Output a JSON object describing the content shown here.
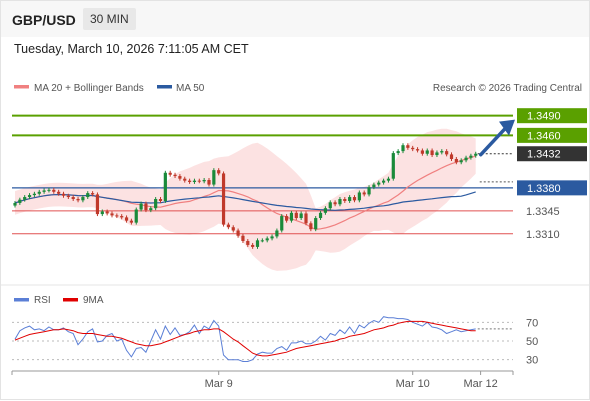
{
  "header": {
    "symbol": "GBP/USD",
    "timeframe": "30 MIN"
  },
  "timestamp": "Tuesday, March 10, 2026 7:11:05 AM CET",
  "legend": {
    "ma20_label": "MA 20 + Bollinger Bands",
    "ma20_color": "#f08080",
    "ma50_label": "MA 50",
    "ma50_color": "#2b5aa0",
    "copyright": "Research © 2026 Trading Central"
  },
  "rsi_legend": {
    "rsi_label": "RSI",
    "rsi_color": "#5b7fd6",
    "ma_label": "9MA",
    "ma_color": "#e00000"
  },
  "colors": {
    "up": "#1a8a3a",
    "down": "#c0392b",
    "band": "#fbd8d8",
    "resistance": "#5aa000",
    "support": "#2b5aa0",
    "sub_support": "#e05050",
    "arrow": "#2b5aa0"
  },
  "chart_data": [
    {
      "type": "candlestick",
      "ylim": [
        1.3235,
        1.352
      ],
      "x_labels": [
        "Mar 9",
        "Mar 10",
        "Mar 12"
      ],
      "current_price": 1.3432,
      "levels": [
        {
          "value": 1.349,
          "label": "1.3490",
          "kind": "resistance"
        },
        {
          "value": 1.346,
          "label": "1.3460",
          "kind": "resistance"
        },
        {
          "value": 1.3432,
          "label": "1.3432",
          "kind": "current"
        },
        {
          "value": 1.338,
          "label": "1.3380",
          "kind": "pivot"
        },
        {
          "value": 1.3345,
          "label": "1.3345",
          "kind": "support"
        },
        {
          "value": 1.331,
          "label": "1.3310",
          "kind": "support"
        }
      ],
      "forecast_target": 1.349,
      "close": [
        1.3357,
        1.3362,
        1.3366,
        1.3369,
        1.3371,
        1.3374,
        1.3376,
        1.3377,
        1.3374,
        1.3371,
        1.3368,
        1.3366,
        1.3363,
        1.3361,
        1.3366,
        1.3372,
        1.337,
        1.334,
        1.3344,
        1.3341,
        1.3338,
        1.3337,
        1.3335,
        1.333,
        1.3327,
        1.3347,
        1.3356,
        1.3346,
        1.3349,
        1.3363,
        1.336,
        1.3403,
        1.34,
        1.3398,
        1.3394,
        1.3391,
        1.3389,
        1.3391,
        1.339,
        1.3392,
        1.3385,
        1.3407,
        1.3402,
        1.3324,
        1.332,
        1.3315,
        1.3307,
        1.3299,
        1.3293,
        1.329,
        1.33,
        1.33,
        1.3303,
        1.3306,
        1.3315,
        1.3337,
        1.333,
        1.3342,
        1.3334,
        1.3341,
        1.3326,
        1.3317,
        1.3334,
        1.3342,
        1.3349,
        1.3358,
        1.3355,
        1.3363,
        1.336,
        1.3366,
        1.3361,
        1.3373,
        1.337,
        1.3381,
        1.3385,
        1.3388,
        1.3391,
        1.3394,
        1.3433,
        1.3436,
        1.3445,
        1.3441,
        1.3439,
        1.3437,
        1.3432,
        1.3437,
        1.343,
        1.3434,
        1.3436,
        1.3431,
        1.3424,
        1.3419,
        1.3422,
        1.3426,
        1.3429,
        1.3432
      ]
    },
    {
      "type": "line",
      "title": "RSI",
      "ylim": [
        20,
        80
      ],
      "ticks": [
        70,
        50,
        30
      ],
      "series": [
        {
          "name": "RSI",
          "values": [
            52,
            61,
            64,
            66,
            62,
            63,
            61,
            65,
            62,
            62,
            64,
            60,
            58,
            46,
            52,
            60,
            63,
            49,
            50,
            56,
            58,
            50,
            52,
            40,
            33,
            42,
            43,
            38,
            50,
            62,
            52,
            66,
            57,
            64,
            56,
            57,
            60,
            67,
            58,
            66,
            63,
            72,
            66,
            35,
            30,
            30,
            30,
            28,
            28,
            30,
            36,
            38,
            37,
            37,
            42,
            44,
            40,
            48,
            48,
            50,
            47,
            47,
            50,
            55,
            51,
            58,
            56,
            62,
            58,
            65,
            58,
            67,
            64,
            69,
            72,
            70,
            76,
            75,
            75,
            74,
            74,
            73,
            70,
            68,
            66,
            70,
            65,
            64,
            62,
            58,
            60,
            62,
            60,
            61,
            62,
            63
          ]
        },
        {
          "name": "9MA",
          "values": [
            51,
            53,
            55,
            57,
            58,
            59,
            60,
            61,
            62,
            62,
            63,
            62,
            61,
            59,
            58,
            58,
            58,
            57,
            56,
            55,
            55,
            54,
            53,
            51,
            49,
            47,
            46,
            45,
            45,
            46,
            47,
            49,
            51,
            53,
            55,
            57,
            58,
            60,
            61,
            62,
            62,
            63,
            63,
            60,
            56,
            52,
            49,
            45,
            41,
            37,
            35,
            34,
            34,
            35,
            36,
            37,
            38,
            40,
            42,
            43,
            44,
            45,
            46,
            47,
            48,
            49,
            50,
            52,
            53,
            55,
            56,
            57,
            58,
            60,
            62,
            63,
            64,
            66,
            67,
            69,
            70,
            71,
            71,
            71,
            71,
            70,
            69,
            68,
            67,
            66,
            65,
            64,
            63,
            62,
            61,
            61
          ]
        }
      ]
    }
  ]
}
